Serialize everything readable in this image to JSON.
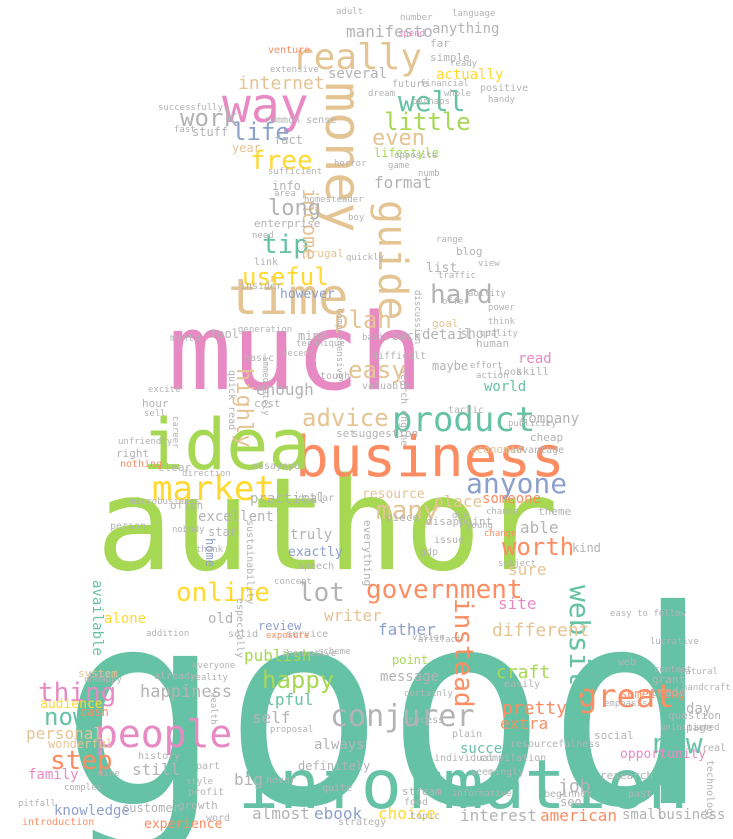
{
  "palette": {
    "teal": "#66c2a5",
    "orange": "#fc8d62",
    "blue": "#8da0cb",
    "pink": "#e78ac3",
    "green": "#a6d854",
    "yellow": "#ffd92f",
    "tan": "#e5c494",
    "grey": "#b3b3b3"
  },
  "words": {
    "good": "good",
    "author": "author",
    "much": "much",
    "information": "information",
    "business": "business",
    "idea": "idea",
    "time": "time",
    "money": "money",
    "way": "way",
    "guide": "guide",
    "really": "really",
    "people": "people",
    "market": "market",
    "product": "product",
    "great": "great",
    "conjurer": "conjurer",
    "anyone": "anyone",
    "government": "government",
    "website": "website",
    "new": "new",
    "online": "online",
    "thing": "thing",
    "step": "step",
    "lot": "lot",
    "many": "many",
    "worth": "worth",
    "instead": "instead",
    "advice": "advice",
    "easy": "easy",
    "plan": "plan",
    "hard": "hard",
    "useful": "useful",
    "tip": "tip",
    "free": "free",
    "life": "life",
    "work": "work",
    "well": "well",
    "little": "little",
    "even": "even",
    "income": "income",
    "long": "long",
    "internet": "internet",
    "highly": "highly",
    "happy": "happy",
    "now": "now",
    "happiness": "happiness",
    "different": "different",
    "craft": "craft",
    "pretty": "pretty",
    "extra": "extra",
    "job": "job",
    "american": "american",
    "small": "small",
    "business2": "business",
    "interest": "interest",
    "choice": "choice",
    "ebook": "ebook",
    "almost": "almost",
    "personal": "personal",
    "family": "family",
    "knowledge": "knowledge",
    "customer": "customer",
    "experience": "experience",
    "still": "still",
    "big": "big",
    "self": "self",
    "helpful": "helpful",
    "publish": "publish",
    "writer": "writer",
    "father": "father",
    "site": "site",
    "place": "place",
    "someone": "someone",
    "enough": "enough",
    "format": "format",
    "several": "several",
    "actually": "actually",
    "year": "year",
    "stuff": "stuff",
    "fact": "fact",
    "info": "info",
    "detail": "detail",
    "however": "however",
    "world": "world",
    "excellent": "excellent",
    "practical": "practical",
    "truly": "truly",
    "exactly": "exactly",
    "available": "available",
    "audience": "audience",
    "old": "old",
    "alone": "alone",
    "sure": "sure",
    "opportunity": "opportunity",
    "company": "company",
    "always": "always",
    "definitely": "definitely",
    "success": "success",
    "read": "read",
    "resource": "resource",
    "message": "message",
    "point": "point",
    "day": "day",
    "wonderful": "wonderful",
    "cash": "cash",
    "review": "review",
    "home": "home",
    "something": "something",
    "list": "list",
    "goal": "goal",
    "short": "short",
    "tool": "tool",
    "mind": "mind",
    "back": "back",
    "star": "star",
    "system": "system",
    "manifesto": "manifesto",
    "anything": "anything",
    "lifestyle": "lifestyle",
    "common_sense": "common sense",
    "quick_read": "quick read",
    "search_engine": "search engine",
    "seo": "seo",
    "far": "far",
    "adult": "adult",
    "simple": "simple",
    "future": "future",
    "positive": "positive",
    "financial": "financial",
    "dream": "dream",
    "spend": "spend",
    "venture": "venture",
    "number": "number",
    "language": "language",
    "extensive": "extensive",
    "frugal": "frugal",
    "homesteader": "homesteader",
    "enterprise": "enterprise",
    "link": "link",
    "insider": "insider",
    "trade": "trade",
    "grant": "grant",
    "technology": "technology",
    "social": "social",
    "research": "research",
    "question": "question",
    "page": "page",
    "kind": "kind",
    "able": "able",
    "theme": "theme",
    "web": "web",
    "human": "human",
    "maybe": "maybe",
    "skill": "skill",
    "look": "look",
    "basic": "basic",
    "cost": "cost",
    "hour": "hour",
    "month": "month",
    "clear": "clear",
    "right": "right",
    "nothing": "nothing",
    "unhappy": "unhappy",
    "history": "history",
    "introduction": "introduction",
    "growth": "growth",
    "profit": "profit",
    "word": "word",
    "stream": "stream",
    "food": "food",
    "topic": "topic",
    "quite": "quite",
    "strategy": "strategy",
    "beginner": "beginner",
    "individual": "individual",
    "compilation": "compilation",
    "resourcefulness": "resourcefulness",
    "seemingly": "seemingly",
    "past": "past",
    "cheap": "cheap",
    "advantage": "advantage",
    "economic": "economic",
    "set": "set",
    "suggestion": "suggestion",
    "tough": "tough",
    "valuable": "valuable",
    "difficult": "difficult",
    "comprehensive": "comprehensive",
    "decent": "decent",
    "generation": "generation",
    "excite": "excite",
    "sell": "sell",
    "essay": "essay",
    "eye": "eye",
    "dollar": "dollar",
    "piece": "piece",
    "issue": "issue",
    "due": "due",
    "young": "young",
    "subject": "subject",
    "service": "service",
    "especially": "especially",
    "sustainability": "sustainability",
    "person": "person",
    "often": "often",
    "thank": "thank",
    "addition": "addition",
    "speech": "speech",
    "solid": "solid",
    "career": "career",
    "exposure": "exposure",
    "innovative": "innovative",
    "certainly": "certainly",
    "proposal": "proposal",
    "process": "process",
    "easily": "easily",
    "artifact": "artifact",
    "chance": "chance",
    "change": "change",
    "disappoint": "disappoint",
    "everything": "everything",
    "gdp": "gdp",
    "vision": "vision",
    "concept": "concept",
    "scheme": "scheme",
    "everyone": "everyone",
    "reality": "reality",
    "already": "already",
    "type": "type",
    "never": "never",
    "part": "part",
    "style": "style",
    "wealth": "wealth",
    "plain": "plain",
    "informative": "informative",
    "uninitiated": "uninitiated",
    "handcraft": "handcraft",
    "natural": "natural",
    "quickly": "quickly",
    "traffic": "traffic",
    "blog": "blog",
    "opposite": "opposite",
    "game": "game",
    "horror": "horror",
    "perhaps": "perhaps",
    "ready": "ready",
    "handy": "handy",
    "successfully": "successfully",
    "microbusiness": "microbusiness",
    "direction": "direction",
    "immediately": "immediately",
    "area": "area",
    "need": "need",
    "fast": "fast",
    "effort": "effort",
    "action": "action",
    "tactic": "tactic",
    "think": "think",
    "quality": "quality",
    "view": "view",
    "power": "power",
    "ability": "ability",
    "discussion": "discussion",
    "technique": "technique",
    "numb": "numb",
    "sufficient": "sufficient",
    "whole": "whole",
    "range": "range",
    "boy": "boy",
    "offer": "offer",
    "basis": "basis",
    "emphasis": "emphasis",
    "content": "content",
    "lucrative": "lucrative",
    "easy_to_follow": "easy to follow",
    "nobody": "nobody",
    "unfriendly": "unfriendly",
    "publicity": "publicity",
    "dollar_sign": "dollar",
    "pitfall": "pitfall",
    "complex": "complex",
    "mine": "mine",
    "real": "real"
  }
}
